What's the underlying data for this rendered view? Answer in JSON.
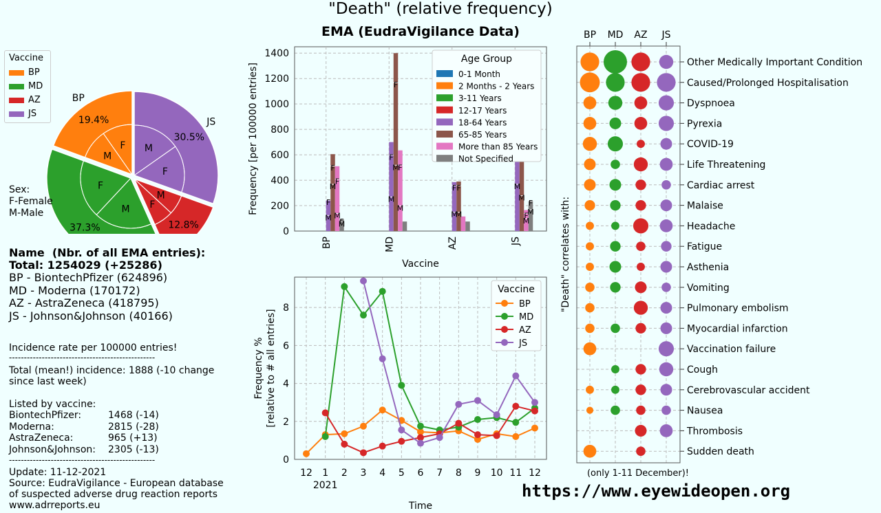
{
  "main_title": "\"Death\" (relative frequency)",
  "website": "https://www.eyewideopen.org",
  "colors": {
    "BP": "#ff7f0e",
    "MD": "#2ca02c",
    "AZ": "#d62728",
    "JS": "#9467bd",
    "age": [
      "#1f77b4",
      "#ff7f0e",
      "#2ca02c",
      "#d62728",
      "#9467bd",
      "#8c564b",
      "#e377c2",
      "#7f7f7f"
    ]
  },
  "left_panel": {
    "name_header": "Name  (Nbr. of all EMA entries):",
    "total": "Total: 1254029 (+25286)",
    "vaccines": [
      "BP - BiontechPfizer (624896)",
      "MD - Moderna (170172)",
      "AZ - AstraZeneca (418795)",
      "JS - Johnson&Johnson (40166)"
    ],
    "incidence_note": "Incidence rate per 100000 entries!",
    "divider": "-------------------------------------------------",
    "total_mean": "Total (mean!) incidence: 1888 (-10 change",
    "since": "since last week)",
    "listed_by": "Listed by vaccine:",
    "by_vaccine": [
      {
        "name": "BiontechPfizer:",
        "value": "1468 (-14)"
      },
      {
        "name": "Moderna:",
        "value": "2815 (-28)"
      },
      {
        "name": "AstraZeneca:",
        "value": "965 (+13)"
      },
      {
        "name": "Johnson&Johnson:",
        "value": "2305 (-13)"
      }
    ],
    "update": "Update: 11-12-2021",
    "source1": "Source: EudraVigilance - European database",
    "source2": "of suspected adverse drug reaction reports",
    "source3": "www.adrreports.eu",
    "sex_legend": [
      "Sex:",
      "F-Female",
      "M-Male"
    ]
  },
  "chart_data": [
    {
      "type": "pie",
      "legend_title": "Vaccine",
      "legend_position": "upper-left",
      "categories": [
        "BP",
        "MD",
        "AZ",
        "JS"
      ],
      "outer_percent": [
        19.4,
        37.3,
        12.8,
        30.5
      ],
      "outer_labels": [
        "19.4%",
        "37.3%",
        "12.8%",
        "30.5%"
      ],
      "inner_sex_split": [
        {
          "vaccine": "BP",
          "labels": [
            "F",
            "M"
          ]
        },
        {
          "vaccine": "MD",
          "labels": [
            "F",
            "M"
          ]
        },
        {
          "vaccine": "AZ",
          "labels": [
            "F",
            "M"
          ]
        },
        {
          "vaccine": "JS",
          "labels": [
            "F",
            "M"
          ]
        }
      ]
    },
    {
      "type": "bar",
      "title": "EMA (EudraVigilance Data)",
      "xlabel": "Vaccine",
      "ylabel": "Frequency [per 100000 entries]",
      "ylim": [
        0,
        1450
      ],
      "yticks": [
        0,
        200,
        400,
        600,
        800,
        1000,
        1200,
        1400
      ],
      "grid": true,
      "categories": [
        "BP",
        "MD",
        "AZ",
        "JS"
      ],
      "legend_title": "Age Group",
      "legend_position": "upper-right",
      "series": [
        {
          "name": "0-1 Month",
          "values": [
            0,
            0,
            0,
            0
          ]
        },
        {
          "name": "2 Months - 2 Years",
          "values": [
            0,
            0,
            0,
            0
          ]
        },
        {
          "name": "3-11 Years",
          "values": [
            0,
            0,
            0,
            0
          ]
        },
        {
          "name": "12-17 Years",
          "values": [
            0,
            0,
            0,
            0
          ]
        },
        {
          "name": "18-64 Years",
          "values": [
            245,
            700,
            385,
            1080
          ]
        },
        {
          "name": "65-85 Years",
          "values": [
            605,
            1400,
            390,
            805
          ]
        },
        {
          "name": "More than 85 Years",
          "values": [
            510,
            635,
            115,
            165
          ]
        },
        {
          "name": "Not Specified",
          "values": [
            95,
            75,
            75,
            240
          ]
        }
      ],
      "sex_marks": [
        {
          "vaccine": "BP",
          "age": "18-64 Years",
          "F": 205,
          "M": 85
        },
        {
          "vaccine": "BP",
          "age": "65-85 Years",
          "F": 475,
          "M": 330
        },
        {
          "vaccine": "BP",
          "age": "More than 85 Years",
          "F": 370,
          "M": 100
        },
        {
          "vaccine": "BP",
          "age": "Not Specified",
          "F": 55,
          "M": 35
        },
        {
          "vaccine": "MD",
          "age": "18-64 Years",
          "F": 560,
          "M": 230
        },
        {
          "vaccine": "MD",
          "age": "65-85 Years",
          "F": 1130,
          "M": 480
        },
        {
          "vaccine": "MD",
          "age": "More than 85 Years",
          "F": 480,
          "M": 160
        },
        {
          "vaccine": "AZ",
          "age": "18-64 Years",
          "F": 320,
          "M": 110
        },
        {
          "vaccine": "AZ",
          "age": "65-85 Years",
          "F": 320,
          "M": 110
        },
        {
          "vaccine": "JS",
          "age": "18-64 Years",
          "F": 800,
          "M": 330
        },
        {
          "vaccine": "JS",
          "age": "65-85 Years",
          "F": 600,
          "M": 240
        },
        {
          "vaccine": "JS",
          "age": "More than 85 Years",
          "F": 100,
          "M": 60
        },
        {
          "vaccine": "JS",
          "age": "Not Specified",
          "F": 200,
          "M": 130
        }
      ]
    },
    {
      "type": "line",
      "xlabel": "Time",
      "ylabel": "Frequency %",
      "ylabel2": "[relative to # all entries]",
      "ylim": [
        0,
        9.6
      ],
      "yticks": [
        0,
        2,
        4,
        6,
        8
      ],
      "x": [
        12,
        1,
        2,
        3,
        4,
        5,
        6,
        7,
        8,
        9,
        10,
        11,
        12
      ],
      "x_tick_labels": [
        "12",
        "1",
        "2",
        "3",
        "4",
        "5",
        "6",
        "7",
        "8",
        "9",
        "10",
        "11",
        "12"
      ],
      "year_label": "2021",
      "grid": true,
      "legend_title": "Vaccine",
      "legend_position": "upper-right",
      "series": [
        {
          "name": "BP",
          "values": [
            0.3,
            1.3,
            1.35,
            1.75,
            2.6,
            2.05,
            1.45,
            1.4,
            1.5,
            1.05,
            1.35,
            1.2,
            1.65
          ]
        },
        {
          "name": "MD",
          "values": [
            null,
            1.2,
            9.1,
            7.6,
            8.85,
            3.9,
            1.75,
            1.55,
            1.7,
            2.1,
            2.2,
            1.95,
            2.7
          ]
        },
        {
          "name": "AZ",
          "values": [
            null,
            2.45,
            0.8,
            0.35,
            0.7,
            0.95,
            1.15,
            1.35,
            1.9,
            1.3,
            1.25,
            2.8,
            2.55
          ]
        },
        {
          "name": "JS",
          "values": [
            null,
            null,
            null,
            9.4,
            5.3,
            1.55,
            0.85,
            1.15,
            2.9,
            3.1,
            2.35,
            4.4,
            3.0
          ]
        }
      ]
    },
    {
      "type": "scatter",
      "ylabel": "\"Death\" correlates with:",
      "note": "(only 1-11 December)!",
      "grid": true,
      "columns": [
        "BP",
        "MD",
        "AZ",
        "JS"
      ],
      "rows": [
        "Other Medically Important Condition",
        "Caused/Prolonged Hospitalisation",
        "Dyspnoea",
        "Pyrexia",
        "COVID-19",
        "Life Threatening",
        "Cardiac arrest",
        "Malaise",
        "Headache",
        "Fatigue",
        "Asthenia",
        "Vomiting",
        "Pulmonary embolism",
        "Myocardial infarction",
        "Vaccination failure",
        "Cough",
        "Cerebrovascular accident",
        "Nausea",
        "Thrombosis",
        "Sudden death"
      ],
      "sizes": [
        [
          0.8,
          1.0,
          0.8,
          0.6
        ],
        [
          0.85,
          0.8,
          0.8,
          0.8
        ],
        [
          0.55,
          0.6,
          0.55,
          0.65
        ],
        [
          0.55,
          0.5,
          0.55,
          0.65
        ],
        [
          0.6,
          0.65,
          0.35,
          0.5
        ],
        [
          0.5,
          0.4,
          0.6,
          0.55
        ],
        [
          0.5,
          0.5,
          0.45,
          0.4
        ],
        [
          0.45,
          0.45,
          0.45,
          0.5
        ],
        [
          0.35,
          0.35,
          0.65,
          0.55
        ],
        [
          0.35,
          0.45,
          0.4,
          0.45
        ],
        [
          0.35,
          0.5,
          0.35,
          0.5
        ],
        [
          0.4,
          0.45,
          0.5,
          0.4
        ],
        [
          0.4,
          0,
          0.6,
          0.5
        ],
        [
          0.4,
          0.4,
          0.45,
          0.5
        ],
        [
          0.55,
          0,
          0,
          0.65
        ],
        [
          0,
          0.35,
          0.45,
          0.6
        ],
        [
          0.35,
          0.35,
          0.45,
          0.5
        ],
        [
          0.3,
          0.4,
          0.4,
          0.4
        ],
        [
          0,
          0,
          0.5,
          0.55
        ],
        [
          0.55,
          0,
          0.4,
          0
        ]
      ]
    }
  ]
}
